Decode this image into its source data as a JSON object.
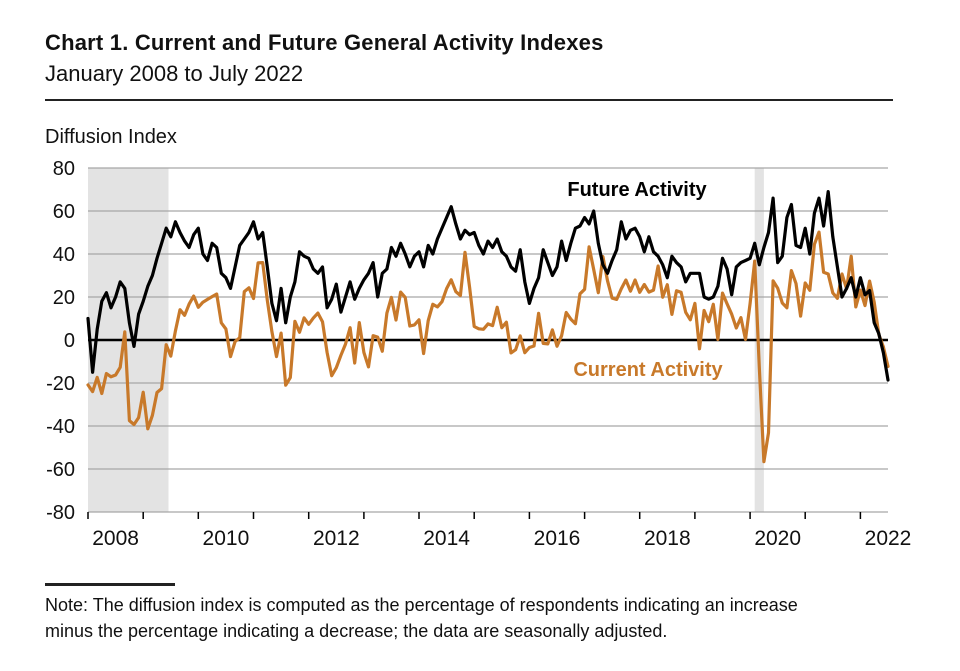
{
  "title": "Chart 1. Current and Future General Activity Indexes",
  "subtitle": "January 2008 to July 2022",
  "axis_title": "Diffusion Index",
  "labels": {
    "future": "Future Activity",
    "current": "Current Activity"
  },
  "note": {
    "line1": "Note: The diffusion index is computed as the percentage of respondents indicating an increase",
    "line2": "minus the percentage indicating a decrease; the data are seasonally adjusted."
  },
  "colors": {
    "future": "#000000",
    "current": "#C8792A",
    "recession_band": "#E3E3E3",
    "gridline": "#A6A6A6",
    "zero_line": "#000000"
  },
  "chart_data": {
    "type": "line",
    "x_unit": "month",
    "x_start": "2008-01",
    "x_end": "2022-07",
    "x_tick_years": [
      2008,
      2010,
      2012,
      2014,
      2016,
      2018,
      2020,
      2022
    ],
    "ylim": [
      -80,
      80
    ],
    "y_ticks": [
      80,
      60,
      40,
      20,
      0,
      -20,
      -40,
      -60,
      -80
    ],
    "grid": true,
    "recession_bands": [
      {
        "start_month": 0,
        "end_month": 17.5
      },
      {
        "start_month": 145,
        "end_month": 147
      }
    ],
    "series": [
      {
        "name": "Future Activity",
        "values": [
          10,
          -15,
          5,
          18,
          22,
          15,
          20,
          27,
          24,
          8,
          -3,
          12,
          18,
          25,
          30,
          38,
          45,
          52,
          48,
          55,
          50,
          46,
          43,
          49,
          52,
          40,
          37,
          45,
          43,
          31,
          29,
          24,
          34,
          44,
          47,
          50,
          55,
          47,
          50,
          34,
          17,
          9,
          24,
          8,
          20,
          27,
          41,
          39,
          38,
          33,
          31,
          34,
          15,
          19,
          26,
          13,
          20,
          27,
          19,
          24,
          28,
          31,
          36,
          20,
          31,
          33,
          43,
          39,
          45,
          40,
          34,
          39,
          41,
          34,
          44,
          40,
          47,
          52,
          57,
          62,
          54,
          47,
          51,
          49,
          50,
          44,
          40,
          46,
          43,
          47,
          41,
          39,
          34,
          32,
          42,
          27,
          17,
          24,
          29,
          42,
          36,
          30,
          34,
          46,
          37,
          45,
          52,
          53,
          57,
          54,
          60,
          45,
          35,
          31,
          37,
          42,
          55,
          47,
          51,
          52,
          48,
          41,
          48,
          41,
          39,
          35,
          29,
          39,
          36,
          34,
          27,
          31,
          31,
          31,
          20,
          19,
          20,
          25,
          38,
          33,
          21,
          34,
          36,
          37,
          38,
          45,
          35,
          43,
          50,
          66,
          36,
          39,
          57,
          63,
          44,
          43,
          52,
          40,
          59,
          66,
          53,
          69,
          48,
          34,
          20,
          24,
          29,
          20,
          29,
          21,
          23,
          8,
          3,
          -6,
          -18.6
        ]
      },
      {
        "name": "Current Activity",
        "values": [
          -20.9,
          -24,
          -17.4,
          -24.9,
          -15.6,
          -17.1,
          -16.3,
          -12.7,
          3.8,
          -37.5,
          -39.3,
          -36.1,
          -24.3,
          -41.3,
          -35,
          -24.4,
          -22.6,
          -2.2,
          -7.5,
          4.2,
          14.1,
          11.5,
          16.7,
          20.4,
          15.2,
          17.6,
          18.9,
          20.2,
          21.4,
          8,
          5.1,
          -7.7,
          -0.7,
          1,
          22.5,
          24.3,
          19.3,
          35.9,
          36,
          18.5,
          3.9,
          -7.7,
          3.2,
          -21,
          -17.5,
          8.7,
          3.6,
          10.3,
          7.3,
          10.2,
          12.5,
          8.5,
          -5.8,
          -16.6,
          -12.9,
          -7.1,
          -1.9,
          5.7,
          -10.7,
          8.1,
          -5.8,
          -12.5,
          2,
          1.3,
          -5.2,
          12.5,
          19.8,
          9.3,
          22.3,
          19.8,
          6.5,
          7,
          9.4,
          -6.3,
          9,
          16.6,
          15.4,
          17.8,
          23.9,
          28,
          22.5,
          20.7,
          40.8,
          24.5,
          6.3,
          5.2,
          5,
          7.5,
          6.7,
          15.2,
          5.7,
          8.3,
          -6,
          -4.5,
          1.9,
          -5.9,
          -3.5,
          -2.8,
          12.4,
          -1.6,
          -1.8,
          4.7,
          -2.9,
          2,
          12.8,
          9.7,
          7.6,
          21.5,
          23.6,
          43.3,
          32.8,
          22,
          38.8,
          27.6,
          19.5,
          18.9,
          23.8,
          27.9,
          22.7,
          27.9,
          22.2,
          25.8,
          22.3,
          23.2,
          34.4,
          19.9,
          25.7,
          11.9,
          22.9,
          22.2,
          12.9,
          9.4,
          17,
          -4.1,
          13.7,
          8.5,
          16.6,
          0.3,
          21.8,
          16.8,
          12,
          5.6,
          10.4,
          0.3,
          17,
          36.7,
          -12.7,
          -56.6,
          -43.1,
          27.5,
          24.1,
          17.2,
          15,
          32.3,
          26.3,
          11.1,
          26.5,
          23.1,
          44.5,
          50.2,
          31.5,
          30.7,
          21.9,
          19.4,
          30.7,
          23.8,
          39,
          15.4,
          23.2,
          16,
          27.4,
          17.6,
          2.6,
          -3.3,
          -12.3
        ]
      }
    ]
  }
}
